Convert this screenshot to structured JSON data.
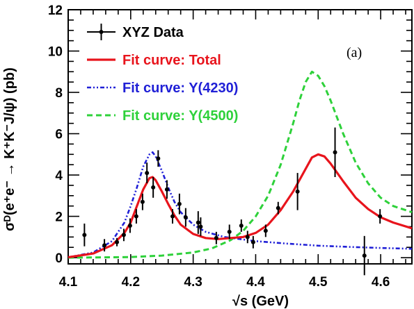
{
  "chart_data": {
    "type": "line",
    "xlabel": "√s (GeV)",
    "ylabel": "σᴰ(e⁺e⁻ → K⁺K⁻J/ψ) (pb)",
    "panel_label": "(a)",
    "xlim": [
      4.1,
      4.65
    ],
    "ylim": [
      -0.3,
      12
    ],
    "x_ticks": [
      "4.1",
      "4.2",
      "4.3",
      "4.4",
      "4.5",
      "4.6"
    ],
    "y_ticks": [
      "0",
      "2",
      "4",
      "6",
      "8",
      "10",
      "12"
    ],
    "legend_position": "top-left",
    "grid": false,
    "series": [
      {
        "name": "XYZ Data",
        "kind": "errorbar",
        "color": "#000000",
        "points": [
          {
            "x": 4.126,
            "y": 1.1,
            "err": 0.55
          },
          {
            "x": 4.158,
            "y": 0.6,
            "err": 0.3
          },
          {
            "x": 4.178,
            "y": 0.75,
            "err": 0.2
          },
          {
            "x": 4.189,
            "y": 1.1,
            "err": 0.3
          },
          {
            "x": 4.199,
            "y": 1.55,
            "err": 0.35
          },
          {
            "x": 4.209,
            "y": 2.0,
            "err": 0.35
          },
          {
            "x": 4.219,
            "y": 2.7,
            "err": 0.4
          },
          {
            "x": 4.226,
            "y": 4.1,
            "err": 0.5
          },
          {
            "x": 4.236,
            "y": 3.4,
            "err": 0.5
          },
          {
            "x": 4.244,
            "y": 4.8,
            "err": 0.4
          },
          {
            "x": 4.258,
            "y": 3.3,
            "err": 0.45
          },
          {
            "x": 4.267,
            "y": 2.0,
            "err": 0.35
          },
          {
            "x": 4.278,
            "y": 2.6,
            "err": 0.5
          },
          {
            "x": 4.288,
            "y": 1.95,
            "err": 0.45
          },
          {
            "x": 4.308,
            "y": 1.7,
            "err": 0.55
          },
          {
            "x": 4.312,
            "y": 1.5,
            "err": 0.45
          },
          {
            "x": 4.337,
            "y": 0.95,
            "err": 0.3
          },
          {
            "x": 4.358,
            "y": 1.25,
            "err": 0.35
          },
          {
            "x": 4.377,
            "y": 1.55,
            "err": 0.3
          },
          {
            "x": 4.387,
            "y": 1.0,
            "err": 0.3
          },
          {
            "x": 4.396,
            "y": 0.75,
            "err": 0.3
          },
          {
            "x": 4.416,
            "y": 1.3,
            "err": 0.3
          },
          {
            "x": 4.436,
            "y": 2.4,
            "err": 0.3
          },
          {
            "x": 4.467,
            "y": 3.2,
            "err": 0.9
          },
          {
            "x": 4.527,
            "y": 5.1,
            "err": 1.2
          },
          {
            "x": 4.574,
            "y": 0.1,
            "err": 0.95
          },
          {
            "x": 4.599,
            "y": 2.0,
            "err": 0.35
          }
        ]
      },
      {
        "name": "Fit curve: Total",
        "kind": "line",
        "color": "#e8141c",
        "dash": "solid",
        "x": [
          4.1,
          4.14,
          4.17,
          4.19,
          4.2,
          4.21,
          4.22,
          4.23,
          4.235,
          4.24,
          4.25,
          4.26,
          4.27,
          4.28,
          4.3,
          4.32,
          4.34,
          4.36,
          4.38,
          4.4,
          4.42,
          4.44,
          4.46,
          4.48,
          4.49,
          4.5,
          4.51,
          4.52,
          4.54,
          4.56,
          4.58,
          4.6,
          4.62,
          4.65
        ],
        "y": [
          0.02,
          0.2,
          0.6,
          1.2,
          1.7,
          2.5,
          3.3,
          3.85,
          3.9,
          3.75,
          3.2,
          2.6,
          2.05,
          1.6,
          1.15,
          0.95,
          0.9,
          0.95,
          1.0,
          1.2,
          1.6,
          2.3,
          3.2,
          4.3,
          4.85,
          5.0,
          4.9,
          4.55,
          3.7,
          2.9,
          2.35,
          1.95,
          1.7,
          1.42
        ]
      },
      {
        "name": "Fit curve: Y(4230)",
        "kind": "line",
        "color": "#1f1fd6",
        "dash": "dashdot",
        "x": [
          4.1,
          4.14,
          4.17,
          4.19,
          4.2,
          4.21,
          4.22,
          4.23,
          4.235,
          4.24,
          4.25,
          4.26,
          4.27,
          4.28,
          4.3,
          4.32,
          4.35,
          4.4,
          4.45,
          4.5,
          4.55,
          4.6,
          4.65
        ],
        "y": [
          0.02,
          0.25,
          0.8,
          1.7,
          2.5,
          3.4,
          4.4,
          5.0,
          5.1,
          4.9,
          4.2,
          3.4,
          2.7,
          2.2,
          1.6,
          1.25,
          1.0,
          0.8,
          0.68,
          0.58,
          0.52,
          0.47,
          0.43
        ]
      },
      {
        "name": "Fit curve: Y(4500)",
        "kind": "line",
        "color": "#2ed13a",
        "dash": "dashed",
        "x": [
          4.1,
          4.2,
          4.25,
          4.3,
          4.33,
          4.36,
          4.38,
          4.4,
          4.42,
          4.44,
          4.46,
          4.47,
          4.48,
          4.49,
          4.5,
          4.51,
          4.52,
          4.54,
          4.56,
          4.58,
          4.6,
          4.62,
          4.65
        ],
        "y": [
          0.0,
          0.03,
          0.1,
          0.25,
          0.45,
          0.85,
          1.3,
          2.0,
          3.0,
          4.5,
          6.5,
          7.6,
          8.5,
          9.0,
          8.8,
          8.3,
          7.6,
          6.0,
          4.6,
          3.6,
          2.9,
          2.5,
          2.2
        ]
      }
    ]
  }
}
